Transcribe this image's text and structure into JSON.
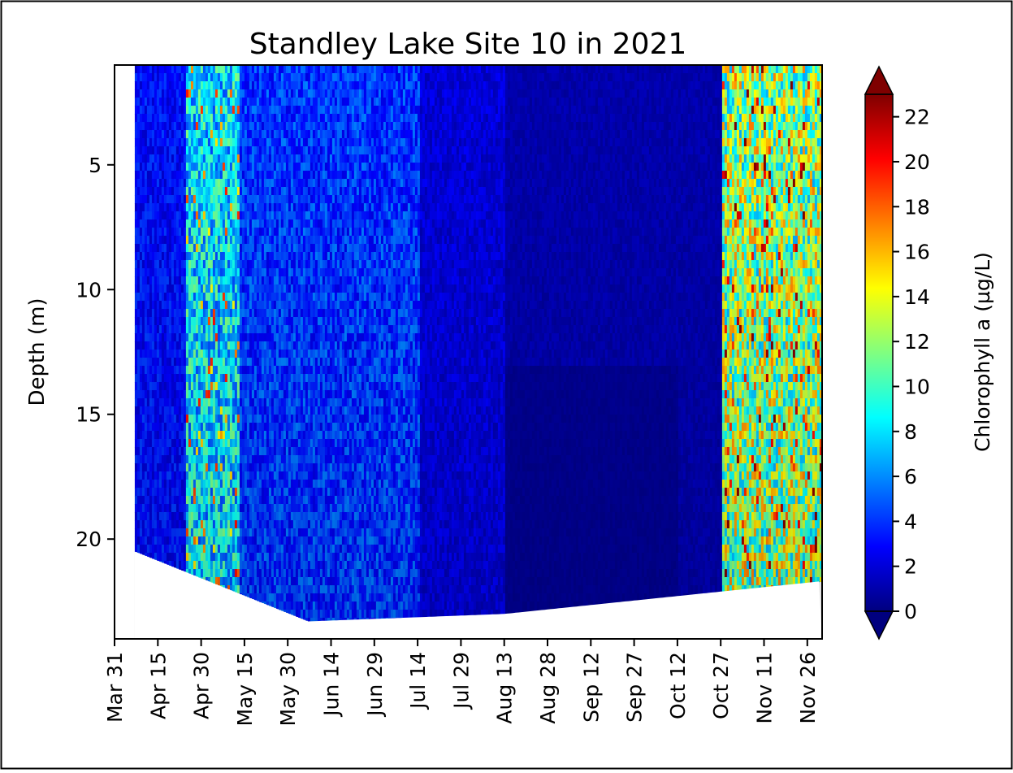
{
  "chart_data": {
    "type": "heatmap",
    "title": "Standley Lake Site 10 in 2021",
    "xlabel": "",
    "ylabel": "Depth (m)",
    "y_axis_inverted": true,
    "ylim": [
      24,
      1
    ],
    "y_ticks": [
      5,
      10,
      15,
      20
    ],
    "x_tick_labels": [
      "Mar 31",
      "Apr 15",
      "Apr 30",
      "May 15",
      "May 30",
      "Jun 14",
      "Jun 29",
      "Jul 14",
      "Jul 29",
      "Aug 13",
      "Aug 28",
      "Sep 12",
      "Sep 27",
      "Oct 12",
      "Oct 27",
      "Nov 11",
      "Nov 26"
    ],
    "xlim": [
      "Mar 31",
      "Nov 30"
    ],
    "colormap": "jet",
    "colorbar": {
      "label": "Chlorophyll a (µg/L)",
      "ticks": [
        0,
        2,
        4,
        6,
        8,
        10,
        12,
        14,
        16,
        18,
        20,
        22
      ],
      "range": [
        0,
        23
      ],
      "extend": "both"
    },
    "bottom_depth_profile": {
      "dates": [
        "Apr 7",
        "Jun 6",
        "Aug 13",
        "Nov 30"
      ],
      "depth_m": [
        20.5,
        23.3,
        23.0,
        21.7
      ]
    },
    "approx_intensity_bands": [
      {
        "period": "Apr 7 - Apr 24",
        "chl_typical": 3
      },
      {
        "period": "Apr 24 - May 13",
        "chl_typical": 8
      },
      {
        "period": "May 13 - Jul 14",
        "chl_typical": 4
      },
      {
        "period": "Jul 14 - Aug 13",
        "chl_typical": 2
      },
      {
        "period": "Aug 13 - Oct 27",
        "chl_typical": 1
      },
      {
        "period": "Oct 27 - Nov 30",
        "chl_typical": 12
      }
    ],
    "grid": false,
    "legend": "none"
  },
  "colors": {
    "plot_background": "#ffffff",
    "frame": "#000000",
    "colormap_stops": [
      "#00007f",
      "#0000ff",
      "#0080ff",
      "#00ffff",
      "#80ff80",
      "#ffff00",
      "#ff8000",
      "#ff0000",
      "#7f0000"
    ]
  }
}
